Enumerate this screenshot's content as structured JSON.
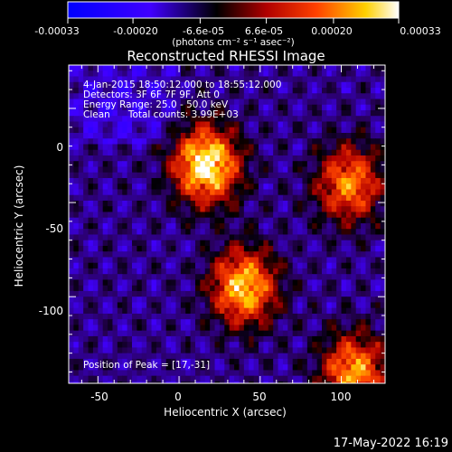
{
  "chart_data": {
    "type": "heatmap",
    "title": "Reconstructed RHESSI Image",
    "xlabel": "Heliocentric X (arcsec)",
    "ylabel": "Heliocentric Y (arcsec)",
    "xlim": [
      -68,
      127
    ],
    "ylim": [
      -146,
      23
    ],
    "x_ticks": [
      -50,
      0,
      50,
      100
    ],
    "y_ticks": [
      0,
      -50,
      -100
    ],
    "colorbar": {
      "range": [
        -0.00033,
        0.00033
      ],
      "tick_values": [
        -0.00033,
        -0.0002,
        -6.6e-05,
        6.6e-05,
        0.0002,
        0.00033
      ],
      "tick_labels": [
        "-0.00033",
        "-0.00020",
        "-6.6e-05",
        "6.6e-05",
        "0.00020",
        "0.00033"
      ],
      "unit_label": "(photons cm⁻² s⁻¹ asec⁻²)",
      "colors": [
        "#0000ff",
        "#000000",
        "#ff0000",
        "#ffff00",
        "#ffffff"
      ]
    },
    "annotations": [
      "4-Jan-2015 18:50:12.000 to 18:55:12.000",
      "Detectors: 3F 6F 7F 9F, Att 0",
      "Energy Range: 25.0 - 50.0 keV",
      "Clean      Total counts: 3.99E+03",
      "Position of Peak = [17,-31]"
    ],
    "sources": [
      {
        "x": 17,
        "y": -30,
        "rel_intensity": 1.0
      },
      {
        "x": 40,
        "y": -95,
        "rel_intensity": 0.85
      },
      {
        "x": 105,
        "y": -40,
        "rel_intensity": 0.7
      },
      {
        "x": 108,
        "y": -140,
        "rel_intensity": 0.75
      }
    ],
    "grid": false
  },
  "footer": {
    "timestamp": "17-May-2022 16:19"
  },
  "style": {
    "background": "#000000",
    "text_color": "#ffffff",
    "axis_color": "#ffffff"
  }
}
